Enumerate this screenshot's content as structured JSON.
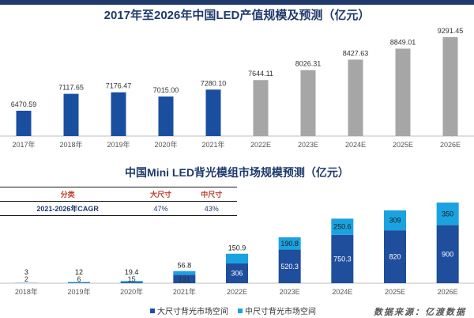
{
  "chart_data": [
    {
      "type": "bar",
      "title": "2017年至2026年中国LED产值规模及预测（亿元）",
      "categories": [
        "2017年",
        "2018年",
        "2019年",
        "2020年",
        "2021年",
        "2022E",
        "2023E",
        "2024E",
        "2025E",
        "2026E"
      ],
      "values": [
        6470.59,
        7117.65,
        7176.47,
        7015.0,
        7280.1,
        7644.11,
        8026.31,
        8427.63,
        8849.01,
        9291.45
      ],
      "value_labels": [
        "6470.59",
        "7117.65",
        "7176.47",
        "7015.00",
        "7280.10",
        "7644.11",
        "8026.31",
        "8427.63",
        "8849.01",
        "9291.45"
      ],
      "colors": {
        "actual": "#1a4fa0",
        "forecast": "#a6a6a6"
      },
      "forecast_from_index": 5,
      "ylim": [
        5500,
        9500
      ],
      "grid": false
    },
    {
      "type": "bar",
      "stacked": true,
      "title": "中国Mini LED背光模组市场规模预测（亿元）",
      "categories": [
        "2018年",
        "2019年",
        "2020年",
        "2021年",
        "2022E",
        "2023E",
        "2024E",
        "2025E",
        "2026E"
      ],
      "series": [
        {
          "name": "大尺寸背光市场空间",
          "values": [
            2,
            6,
            15,
            131,
            306,
            520.3,
            750.3,
            820,
            900
          ],
          "labels": [
            "2",
            "6",
            "15",
            "131",
            "306",
            "520.3",
            "750.3",
            "820",
            "900"
          ],
          "color": "#1f4e9c"
        },
        {
          "name": "中尺寸背光市场空间",
          "values": [
            3,
            12,
            19.4,
            56.8,
            150.9,
            190.8,
            250.6,
            309,
            350
          ],
          "labels": [
            "3",
            "12",
            "19.4",
            "56.8",
            "150.9",
            "190.8",
            "250.6",
            "309",
            "350"
          ],
          "color": "#1aa3e0"
        }
      ],
      "legend_position": "bottom",
      "ylim": [
        0,
        1300
      ]
    }
  ],
  "cagr_table": {
    "headers": [
      "分类",
      "大尺寸",
      "中尺寸"
    ],
    "row": [
      "2021-2026年CAGR",
      "47%",
      "43%"
    ]
  },
  "legend": {
    "large": "大尺寸背光市场空间",
    "medium": "中尺寸背光市场空间"
  },
  "source": "数据来源：亿渡数据"
}
